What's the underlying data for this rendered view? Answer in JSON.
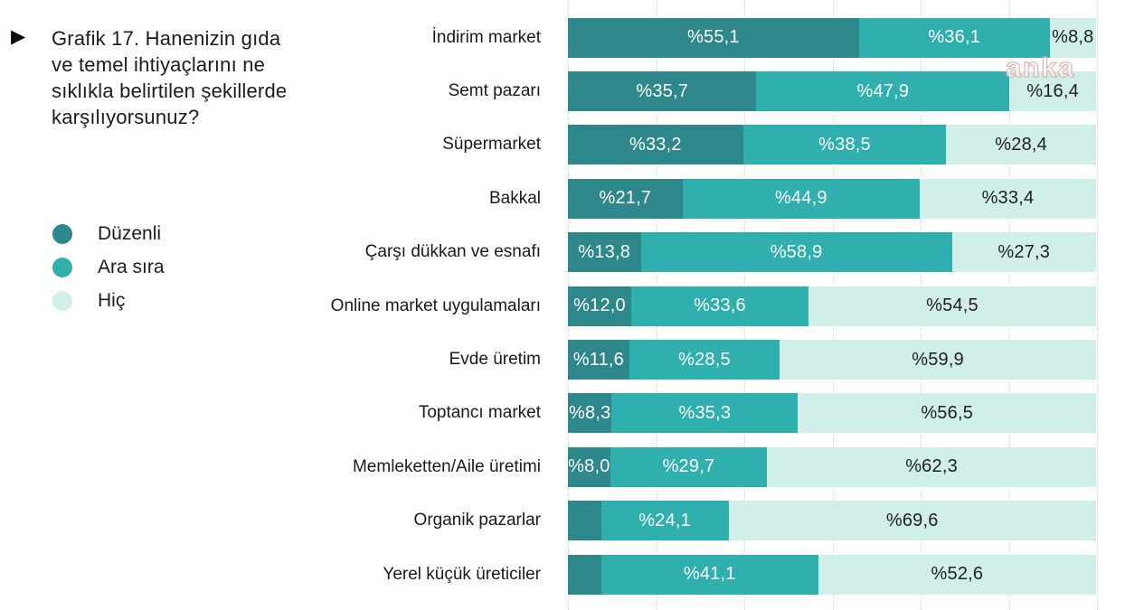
{
  "header": {
    "marker_icon": "▶",
    "title": "Grafik 17. Hanenizin gıda ve temel ihtiyaçlarını ne sıklıkla belirtilen şekillerde karşılıyorsunuz?"
  },
  "legend": {
    "items": [
      {
        "label": "Düzenli",
        "color": "#2E878A"
      },
      {
        "label": "Ara sıra",
        "color": "#2FB0AE"
      },
      {
        "label": "Hiç",
        "color": "#CFEFE8"
      }
    ]
  },
  "watermark": {
    "text": "anka"
  },
  "chart_data": {
    "type": "bar",
    "orientation": "horizontal",
    "stacked": true,
    "title": "Grafik 17. Hanenizin gıda ve temel ihtiyaçlarını ne sıklıkla belirtilen şekillerde karşılıyorsunuz?",
    "xlim": [
      0,
      100
    ],
    "grid": "vertical-dotted",
    "grid_divisions": 6,
    "legend_position": "left",
    "value_label_format": "Turkish percent, comma decimal (e.g. %55,1)",
    "categories": [
      "İndirim market",
      "Semt pazarı",
      "Süpermarket",
      "Bakkal",
      "Çarşı dükkan ve esnafı",
      "Online market uygulamaları",
      "Evde üretim",
      "Toptancı market",
      "Memleketten/Aile üretimi",
      "Organik pazarlar",
      "Yerel küçük üreticiler"
    ],
    "series": [
      {
        "name": "Düzenli",
        "color": "#2E878A",
        "label_color": "#FFFFFF",
        "values": [
          55.1,
          35.7,
          33.2,
          21.7,
          13.8,
          12.0,
          11.6,
          8.3,
          8.0,
          6.3,
          6.3
        ],
        "labels": [
          "%55,1",
          "%35,7",
          "%33,2",
          "%21,7",
          "%13,8",
          "%12,0",
          "%11,6",
          "%8,3",
          "%8,0",
          "",
          ""
        ]
      },
      {
        "name": "Ara sıra",
        "color": "#2FB0AE",
        "label_color": "#FFFFFF",
        "values": [
          36.1,
          47.9,
          38.5,
          44.9,
          58.9,
          33.6,
          28.5,
          35.3,
          29.7,
          24.1,
          41.1
        ],
        "labels": [
          "%36,1",
          "%47,9",
          "%38,5",
          "%44,9",
          "%58,9",
          "%33,6",
          "%28,5",
          "%35,3",
          "%29,7",
          "%24,1",
          "%41,1"
        ]
      },
      {
        "name": "Hiç",
        "color": "#CFEFE8",
        "label_color": "#1F1F1F",
        "values": [
          8.8,
          16.4,
          28.4,
          33.4,
          27.3,
          54.5,
          59.9,
          56.5,
          62.3,
          69.6,
          52.6
        ],
        "labels": [
          "%8,8",
          "%16,4",
          "%28,4",
          "%33,4",
          "%27,3",
          "%54,5",
          "%59,9",
          "%56,5",
          "%62,3",
          "%69,6",
          "%52,6"
        ]
      }
    ]
  }
}
